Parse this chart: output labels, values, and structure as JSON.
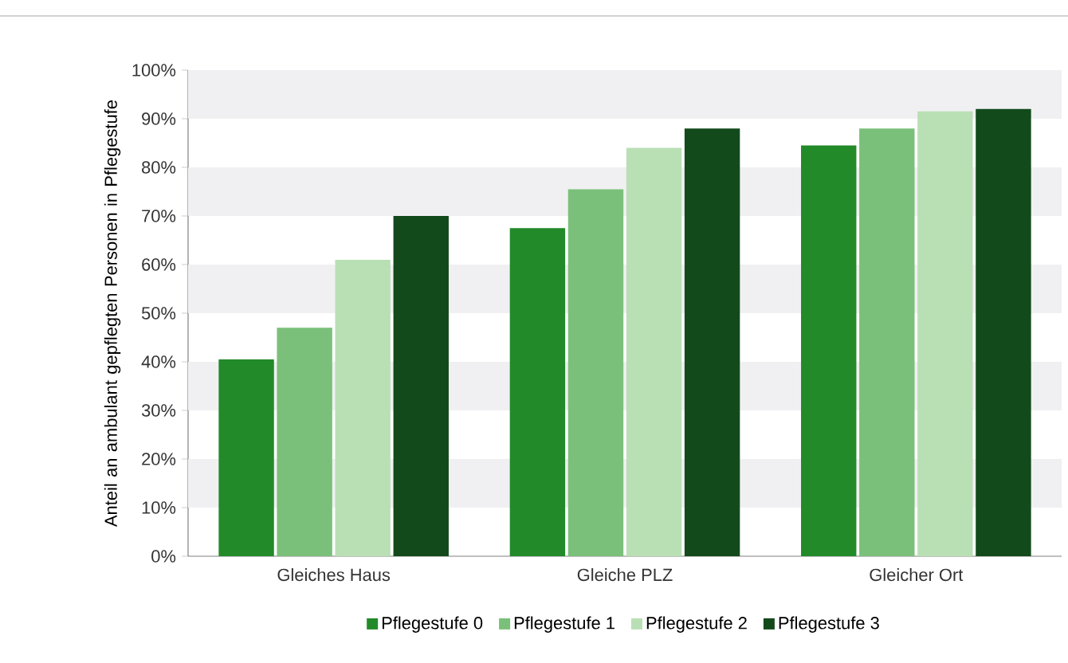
{
  "chart_data": {
    "type": "bar",
    "ylabel": "Anteil an ambulant gepflegten Personen in Pflegestufe",
    "categories": [
      "Gleiches Haus",
      "Gleiche PLZ",
      "Gleicher Ort"
    ],
    "series": [
      {
        "name": "Pflegestufe 0",
        "color": "#238a2a",
        "values": [
          40.5,
          67.5,
          84.5
        ]
      },
      {
        "name": "Pflegestufe 1",
        "color": "#7bc07a",
        "values": [
          47,
          75.5,
          88
        ]
      },
      {
        "name": "Pflegestufe 2",
        "color": "#b9e0b5",
        "values": [
          61,
          84,
          91.5
        ]
      },
      {
        "name": "Pflegestufe 3",
        "color": "#134a1c",
        "values": [
          70,
          88,
          92
        ]
      }
    ],
    "ylim": [
      0,
      100
    ],
    "yticks": [
      {
        "value": 0,
        "label": "0%"
      },
      {
        "value": 10,
        "label": "10%"
      },
      {
        "value": 20,
        "label": "20%"
      },
      {
        "value": 30,
        "label": "30%"
      },
      {
        "value": 40,
        "label": "40%"
      },
      {
        "value": 50,
        "label": "50%"
      },
      {
        "value": 60,
        "label": "60%"
      },
      {
        "value": 70,
        "label": "70%"
      },
      {
        "value": 80,
        "label": "80%"
      },
      {
        "value": 90,
        "label": "90%"
      },
      {
        "value": 100,
        "label": "100%"
      }
    ],
    "bands": [
      {
        "axis": "y",
        "from": 90,
        "to": 100,
        "color": "#f0f0f2"
      },
      {
        "axis": "y",
        "from": 70,
        "to": 80,
        "color": "#f0f0f2"
      },
      {
        "axis": "y",
        "from": 50,
        "to": 60,
        "color": "#f0f0f2"
      },
      {
        "axis": "y",
        "from": 30,
        "to": 40,
        "color": "#f0f0f2"
      },
      {
        "axis": "y",
        "from": 10,
        "to": 20,
        "color": "#f0f0f2"
      }
    ],
    "legend": "bottom"
  }
}
